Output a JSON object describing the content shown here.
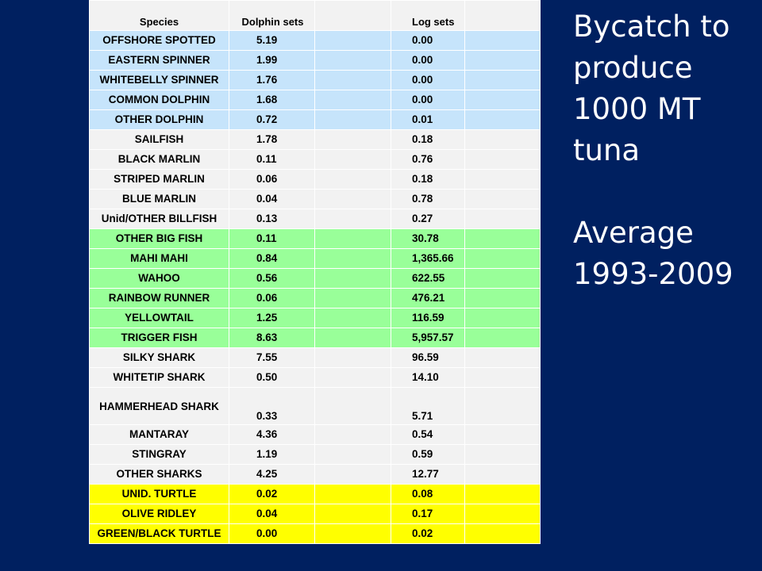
{
  "table": {
    "headers": {
      "species": "Species",
      "dolphin": "Dolphin sets",
      "log": "Log sets"
    },
    "rows": [
      {
        "species": "OFFSHORE SPOTTED",
        "dolphin": "5.19",
        "log": "0.00",
        "group": "blue"
      },
      {
        "species": "EASTERN SPINNER",
        "dolphin": "1.99",
        "log": "0.00",
        "group": "blue"
      },
      {
        "species": "WHITEBELLY SPINNER",
        "dolphin": "1.76",
        "log": "0.00",
        "group": "blue"
      },
      {
        "species": "COMMON DOLPHIN",
        "dolphin": "1.68",
        "log": "0.00",
        "group": "blue"
      },
      {
        "species": "OTHER DOLPHIN",
        "dolphin": "0.72",
        "log": "0.01",
        "group": "blue"
      },
      {
        "species": "SAILFISH",
        "dolphin": "1.78",
        "log": "0.18",
        "group": "white"
      },
      {
        "species": "BLACK MARLIN",
        "dolphin": "0.11",
        "log": "0.76",
        "group": "white"
      },
      {
        "species": "STRIPED MARLIN",
        "dolphin": "0.06",
        "log": "0.18",
        "group": "white"
      },
      {
        "species": "BLUE MARLIN",
        "dolphin": "0.04",
        "log": "0.78",
        "group": "white"
      },
      {
        "species": "Unid/OTHER BILLFISH",
        "dolphin": "0.13",
        "log": "0.27",
        "group": "white"
      },
      {
        "species": "OTHER BIG FISH",
        "dolphin": "0.11",
        "log": "30.78",
        "group": "green"
      },
      {
        "species": "MAHI MAHI",
        "dolphin": "0.84",
        "log": "1,365.66",
        "group": "green"
      },
      {
        "species": "WAHOO",
        "dolphin": "0.56",
        "log": "622.55",
        "group": "green"
      },
      {
        "species": "RAINBOW RUNNER",
        "dolphin": "0.06",
        "log": "476.21",
        "group": "green"
      },
      {
        "species": "YELLOWTAIL",
        "dolphin": "1.25",
        "log": "116.59",
        "group": "green"
      },
      {
        "species": "TRIGGER FISH",
        "dolphin": "8.63",
        "log": "5,957.57",
        "group": "green"
      },
      {
        "species": "SILKY SHARK",
        "dolphin": "7.55",
        "log": "96.59",
        "group": "white"
      },
      {
        "species": "WHITETIP SHARK",
        "dolphin": "0.50",
        "log": "14.10",
        "group": "white"
      },
      {
        "species": "HAMMERHEAD SHARK",
        "dolphin": "0.33",
        "log": "5.71",
        "group": "white"
      },
      {
        "species": "MANTARAY",
        "dolphin": "4.36",
        "log": "0.54",
        "group": "white"
      },
      {
        "species": "STINGRAY",
        "dolphin": "1.19",
        "log": "0.59",
        "group": "white"
      },
      {
        "species": "OTHER SHARKS",
        "dolphin": "4.25",
        "log": "12.77",
        "group": "white"
      },
      {
        "species": "UNID. TURTLE",
        "dolphin": "0.02",
        "log": "0.08",
        "group": "yellow"
      },
      {
        "species": "OLIVE RIDLEY",
        "dolphin": "0.04",
        "log": "0.17",
        "group": "yellow"
      },
      {
        "species": "GREEN/BLACK TURTLE",
        "dolphin": "0.00",
        "log": "0.02",
        "group": "yellow"
      }
    ]
  },
  "side": {
    "lines": [
      "Bycatch to",
      "produce",
      "1000 MT",
      "tuna"
    ],
    "lines2": [
      "Average",
      "1993-2009"
    ]
  },
  "colors": {
    "background": "#002060",
    "blue": "#c6e4fb",
    "white": "#f2f2f2",
    "green": "#99ff99",
    "yellow": "#ffff00"
  }
}
